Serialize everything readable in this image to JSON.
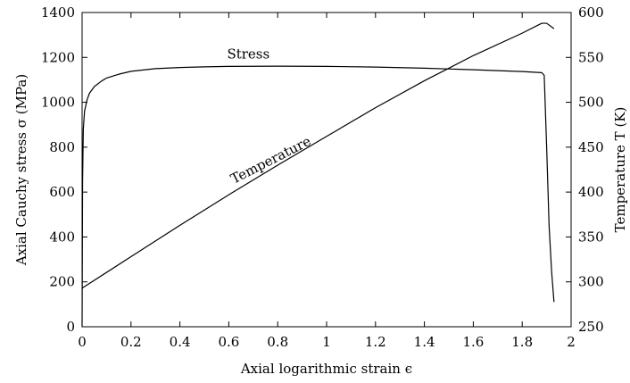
{
  "chart_data": {
    "type": "line",
    "xlabel": "Axial logarithmic strain ϵ",
    "ylabel_left": "Axial Cauchy stress σ (MPa)",
    "ylabel_right": "Temperature T (K)",
    "xlim": [
      0,
      2
    ],
    "ylim_left": [
      0,
      1400
    ],
    "ylim_right": [
      250,
      600
    ],
    "xticks": [
      0,
      0.2,
      0.4,
      0.6,
      0.8,
      1,
      1.2,
      1.4,
      1.6,
      1.8,
      2
    ],
    "xtick_labels": [
      "0",
      "0.2",
      "0.4",
      "0.6",
      "0.8",
      "1",
      "1.2",
      "1.4",
      "1.6",
      "1.8",
      "2"
    ],
    "yticks_left": [
      0,
      200,
      400,
      600,
      800,
      1000,
      1200,
      1400
    ],
    "ytick_labels_left": [
      "0",
      "200",
      "400",
      "600",
      "800",
      "1000",
      "1200",
      "1400"
    ],
    "yticks_right": [
      250,
      300,
      350,
      400,
      450,
      500,
      550,
      600
    ],
    "ytick_labels_right": [
      "250",
      "300",
      "350",
      "400",
      "450",
      "500",
      "550",
      "600"
    ],
    "grid": false,
    "legend": "none",
    "series": [
      {
        "name": "Stress",
        "axis": "left",
        "x": [
          0,
          0.002,
          0.005,
          0.01,
          0.02,
          0.03,
          0.05,
          0.08,
          0.1,
          0.15,
          0.2,
          0.3,
          0.4,
          0.5,
          0.6,
          0.8,
          1.0,
          1.2,
          1.4,
          1.6,
          1.7,
          1.8,
          1.88,
          1.89,
          1.9,
          1.91,
          1.92,
          1.93
        ],
        "y": [
          0,
          650,
          880,
          960,
          1010,
          1040,
          1070,
          1095,
          1108,
          1125,
          1138,
          1150,
          1155,
          1158,
          1160,
          1161,
          1160,
          1157,
          1152,
          1145,
          1141,
          1137,
          1132,
          1120,
          800,
          450,
          250,
          110
        ]
      },
      {
        "name": "Temperature",
        "axis": "right",
        "x": [
          0,
          0.2,
          0.4,
          0.6,
          0.8,
          1.0,
          1.2,
          1.4,
          1.6,
          1.8,
          1.88,
          1.9,
          1.93
        ],
        "y": [
          293,
          328,
          363,
          397,
          430,
          462,
          494,
          524,
          552,
          577,
          588,
          588,
          582
        ]
      }
    ],
    "annotations": [
      {
        "text": "Stress",
        "x": 0.68,
        "y": 1195,
        "axis": "left",
        "rotation": 0
      },
      {
        "text": "Temperature",
        "x": 0.78,
        "y": 725,
        "axis": "left",
        "rotation": -27
      }
    ]
  }
}
